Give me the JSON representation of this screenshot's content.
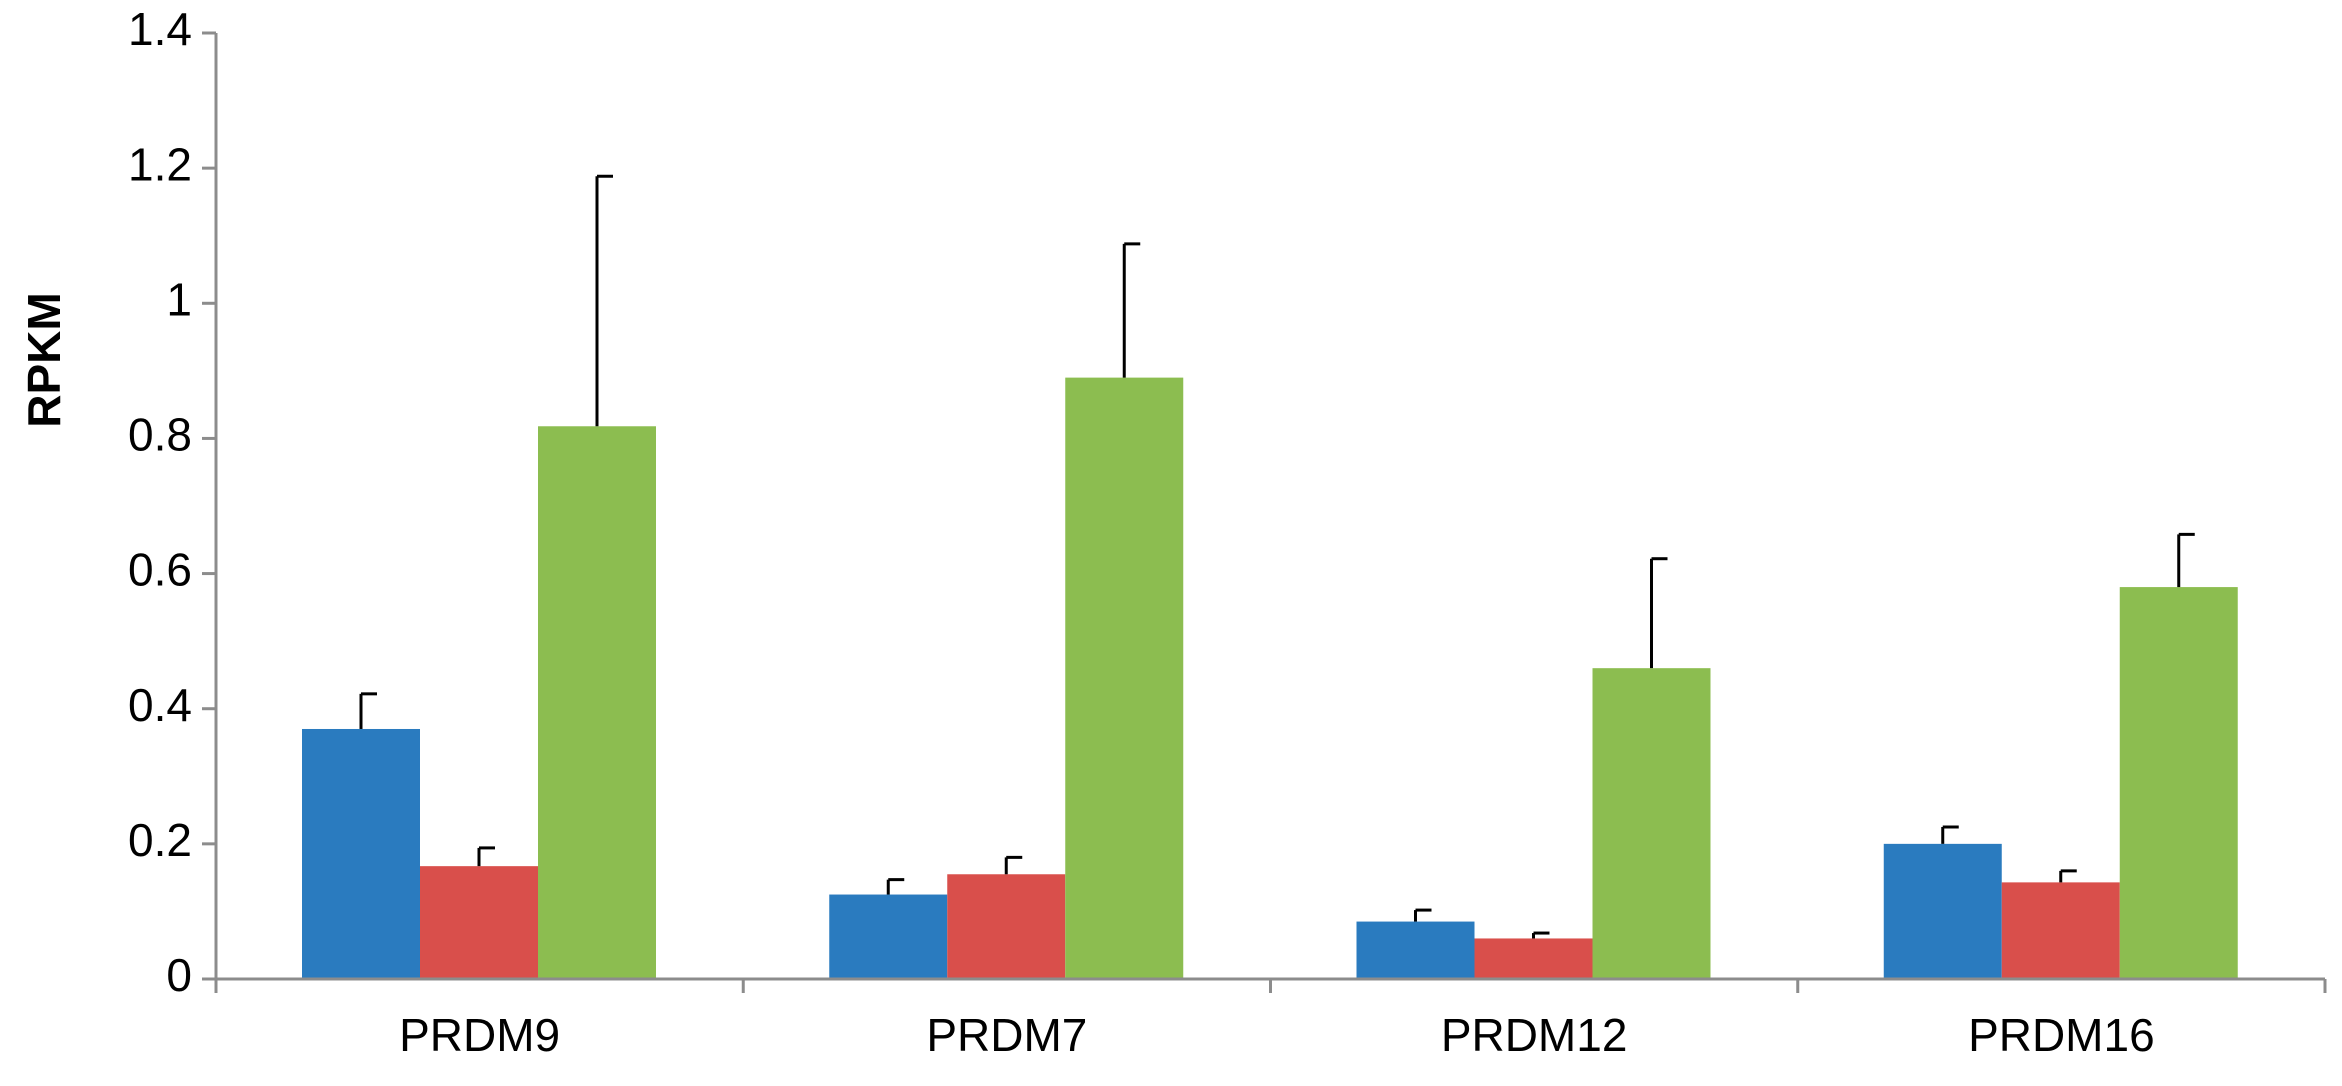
{
  "chart_data": {
    "type": "bar",
    "title": "",
    "xlabel": "",
    "ylabel": "RPKM",
    "ylim": [
      0,
      1.4
    ],
    "yticks": [
      0,
      0.2,
      0.4,
      0.6,
      0.8,
      1,
      1.2,
      1.4
    ],
    "ytick_labels": [
      "0",
      "0.2",
      "0.4",
      "0.6",
      "0.8",
      "1",
      "1.2",
      "1.4"
    ],
    "grid": false,
    "legend": "none",
    "categories": [
      "PRDM9",
      "PRDM7",
      "PRDM12",
      "PRDM16"
    ],
    "series": [
      {
        "color": "#2a7bbf",
        "values": [
          0.37,
          0.125,
          0.085,
          0.2
        ],
        "errors": [
          0.052,
          0.022,
          0.017,
          0.025
        ]
      },
      {
        "color": "#d94f4b",
        "values": [
          0.167,
          0.155,
          0.06,
          0.143
        ],
        "errors": [
          0.027,
          0.025,
          0.008,
          0.017
        ]
      },
      {
        "color": "#8cbd50",
        "values": [
          0.818,
          0.89,
          0.46,
          0.58
        ],
        "errors": [
          0.37,
          0.198,
          0.162,
          0.078
        ]
      }
    ]
  }
}
